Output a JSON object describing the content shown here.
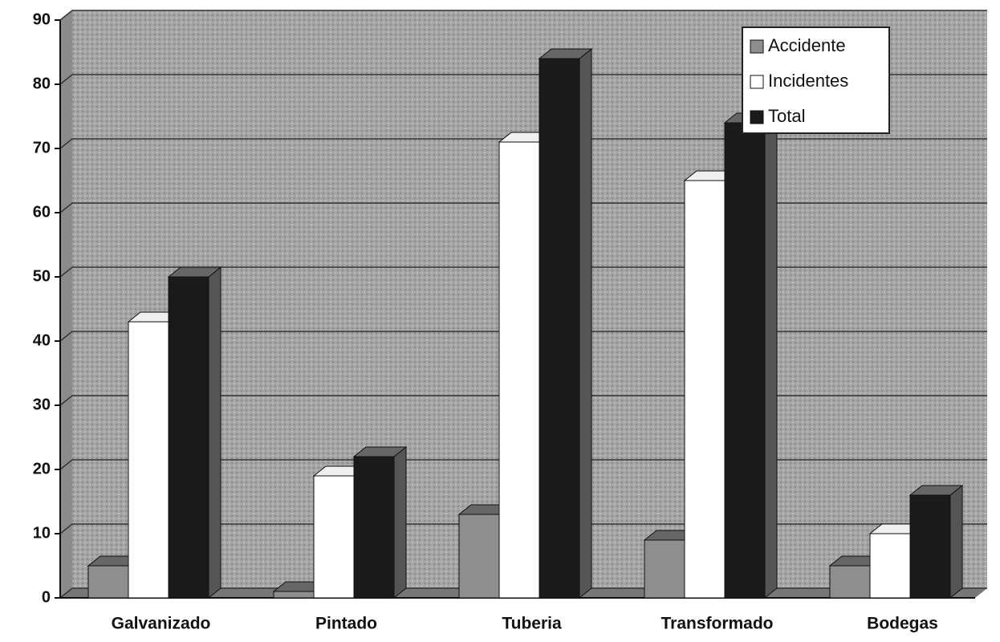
{
  "chart_data": {
    "type": "bar",
    "categories": [
      "Galvanizado",
      "Pintado",
      "Tuberia",
      "Transformado",
      "Bodegas"
    ],
    "series": [
      {
        "name": "Accidente",
        "color": "#8e8e8e",
        "values": [
          5,
          1,
          13,
          9,
          5
        ]
      },
      {
        "name": "Incidentes",
        "color": "#ffffff",
        "values": [
          43,
          19,
          71,
          65,
          10
        ]
      },
      {
        "name": "Total",
        "color": "#1a1a1a",
        "values": [
          50,
          22,
          84,
          74,
          16
        ]
      }
    ],
    "ylim": [
      0,
      90
    ],
    "yticks": [
      0,
      10,
      20,
      30,
      40,
      50,
      60,
      70,
      80,
      90
    ],
    "grid": true,
    "legend": "top-right"
  }
}
